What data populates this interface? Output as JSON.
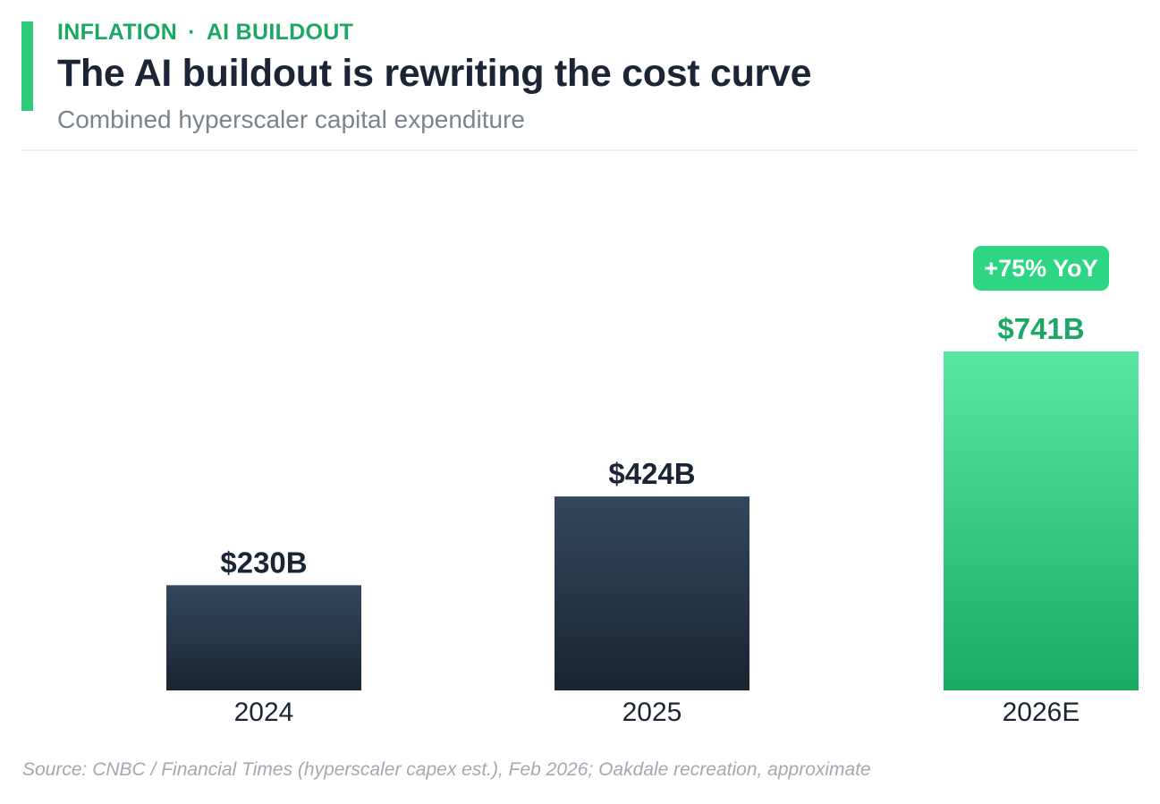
{
  "header": {
    "eyebrow_primary": "INFLATION",
    "eyebrow_separator": "·",
    "eyebrow_secondary": "AI BUILDOUT",
    "title": "The AI buildout is rewriting the cost curve",
    "subtitle": "Combined hyperscaler capital expenditure"
  },
  "chart_data": {
    "type": "bar",
    "title": "The AI buildout is rewriting the cost curve",
    "subtitle": "Combined hyperscaler capital expenditure",
    "categories": [
      "2024",
      "2025",
      "2026E"
    ],
    "values": [
      230,
      424,
      741
    ],
    "value_labels": [
      "$230B",
      "$424B",
      "$741B"
    ],
    "unit": "$B",
    "ylim": [
      0,
      741
    ],
    "grid": false,
    "legend": "none",
    "highlight_index": 2,
    "annotation": {
      "text": "+75% YoY",
      "target_index": 2
    },
    "colors": {
      "bar_dark_top": "#34475e",
      "bar_dark_bottom": "#1a2431",
      "bar_highlight_top": "#5ae8a0",
      "bar_highlight_bottom": "#19ab62",
      "badge": "#2ed683",
      "label_dark": "#1b2535",
      "label_highlight": "#1aa864"
    }
  },
  "footer": {
    "source": "Source: CNBC / Financial Times (hyperscaler capex est.), Feb 2026; Oakdale recreation, approximate"
  }
}
